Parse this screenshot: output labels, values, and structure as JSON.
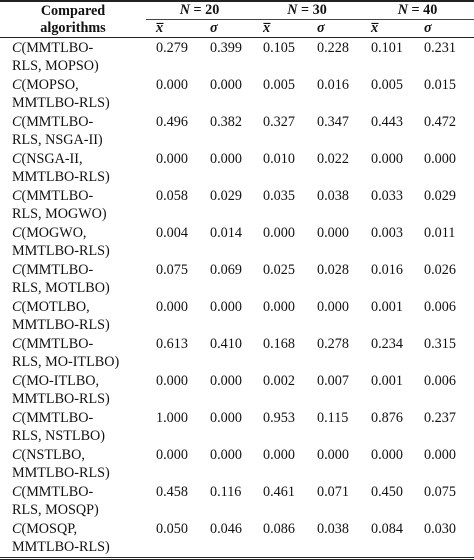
{
  "header": {
    "compared_label_line1": "Compared",
    "compared_label_line2": "algorithms",
    "groups": [
      {
        "n_var": "N",
        "eq": " = 20"
      },
      {
        "n_var": "N",
        "eq": " = 30"
      },
      {
        "n_var": "N",
        "eq": " = 40"
      }
    ],
    "mean_symbol": "x̅",
    "sigma_symbol": "σ"
  },
  "rows": [
    {
      "c": "C",
      "line1": "(MMTLBO-",
      "line2": "RLS, MOPSO)",
      "vals": [
        "0.279",
        "0.399",
        "0.105",
        "0.228",
        "0.101",
        "0.231"
      ]
    },
    {
      "c": "C",
      "line1": "(MOPSO,",
      "line2": "MMTLBO-RLS)",
      "vals": [
        "0.000",
        "0.000",
        "0.005",
        "0.016",
        "0.005",
        "0.015"
      ]
    },
    {
      "c": "C",
      "line1": "(MMTLBO-",
      "line2": "RLS, NSGA-II)",
      "vals": [
        "0.496",
        "0.382",
        "0.327",
        "0.347",
        "0.443",
        "0.472"
      ]
    },
    {
      "c": "C",
      "line1": "(NSGA-II,",
      "line2": "MMTLBO-RLS)",
      "vals": [
        "0.000",
        "0.000",
        "0.010",
        "0.022",
        "0.000",
        "0.000"
      ]
    },
    {
      "c": "C",
      "line1": "(MMTLBO-",
      "line2": "RLS, MOGWO)",
      "vals": [
        "0.058",
        "0.029",
        "0.035",
        "0.038",
        "0.033",
        "0.029"
      ]
    },
    {
      "c": "C",
      "line1": "(MOGWO,",
      "line2": "MMTLBO-RLS)",
      "vals": [
        "0.004",
        "0.014",
        "0.000",
        "0.000",
        "0.003",
        "0.011"
      ]
    },
    {
      "c": "C",
      "line1": "(MMTLBO-",
      "line2": "RLS, MOTLBO)",
      "vals": [
        "0.075",
        "0.069",
        "0.025",
        "0.028",
        "0.016",
        "0.026"
      ]
    },
    {
      "c": "C",
      "line1": "(MOTLBO,",
      "line2": "MMTLBO-RLS)",
      "vals": [
        "0.000",
        "0.000",
        "0.000",
        "0.000",
        "0.001",
        "0.006"
      ]
    },
    {
      "c": "C",
      "line1": "(MMTLBO-",
      "line2": "RLS, MO-ITLBO)",
      "vals": [
        "0.613",
        "0.410",
        "0.168",
        "0.278",
        "0.234",
        "0.315"
      ]
    },
    {
      "c": "C",
      "line1": "(MO-ITLBO,",
      "line2": "MMTLBO-RLS)",
      "vals": [
        "0.000",
        "0.000",
        "0.002",
        "0.007",
        "0.001",
        "0.006"
      ]
    },
    {
      "c": "C",
      "line1": "(MMTLBO-",
      "line2": "RLS, NSTLBO)",
      "vals": [
        "1.000",
        "0.000",
        "0.953",
        "0.115",
        "0.876",
        "0.237"
      ]
    },
    {
      "c": "C",
      "line1": "(NSTLBO,",
      "line2": "MMTLBO-RLS)",
      "vals": [
        "0.000",
        "0.000",
        "0.000",
        "0.000",
        "0.000",
        "0.000"
      ]
    },
    {
      "c": "C",
      "line1": "(MMTLBO-",
      "line2": "RLS, MOSQP)",
      "vals": [
        "0.458",
        "0.116",
        "0.461",
        "0.071",
        "0.450",
        "0.075"
      ]
    },
    {
      "c": "C",
      "line1": "(MOSQP,",
      "line2": "MMTLBO-RLS)",
      "vals": [
        "0.050",
        "0.046",
        "0.086",
        "0.038",
        "0.084",
        "0.030"
      ]
    }
  ]
}
